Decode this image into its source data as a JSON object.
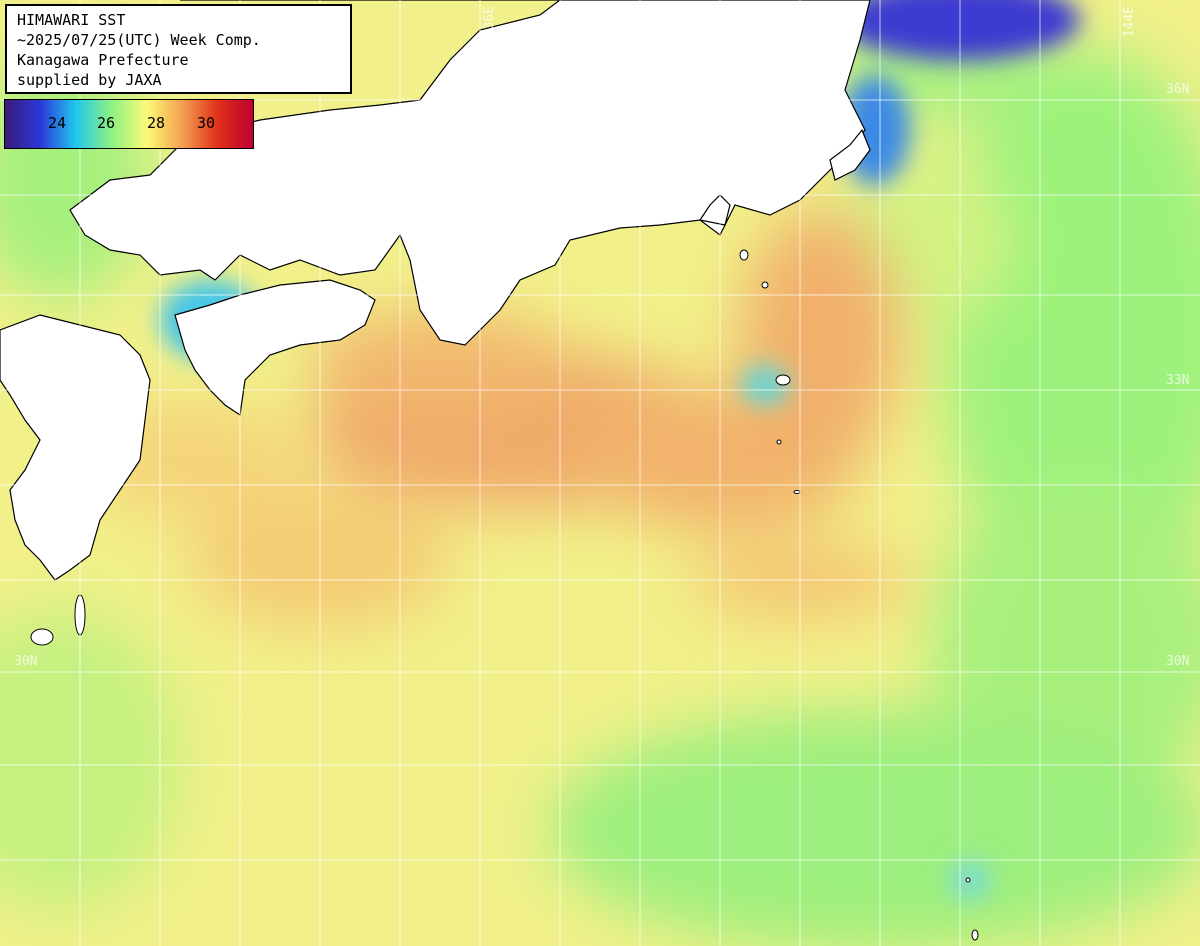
{
  "header": {
    "line1": "HIMAWARI SST",
    "line2": "~2025/07/25(UTC) Week Comp.",
    "line3": "Kanagawa Prefecture",
    "line4": "supplied by JAXA"
  },
  "colorbar": {
    "labels": [
      "24",
      "26",
      "28",
      "30"
    ],
    "stops": [
      "#3a1a7a",
      "#2a3ad8",
      "#22c8ee",
      "#8cf280",
      "#fbfa78",
      "#f4a050",
      "#e0301a",
      "#c00030"
    ]
  },
  "coordinates": {
    "lon_136": "136E",
    "lon_144": "144E",
    "lat_36": "36N",
    "lat_33": "33N",
    "lat_30_left": "30N",
    "lat_30_right": "30N"
  },
  "colors": {
    "land": "#ffffff",
    "coastline": "#000000",
    "grid": "#ffffff",
    "warm": "#f2b068",
    "mid": "#f7f486",
    "cool": "#9af27a",
    "cold": "#3e7ae0"
  }
}
